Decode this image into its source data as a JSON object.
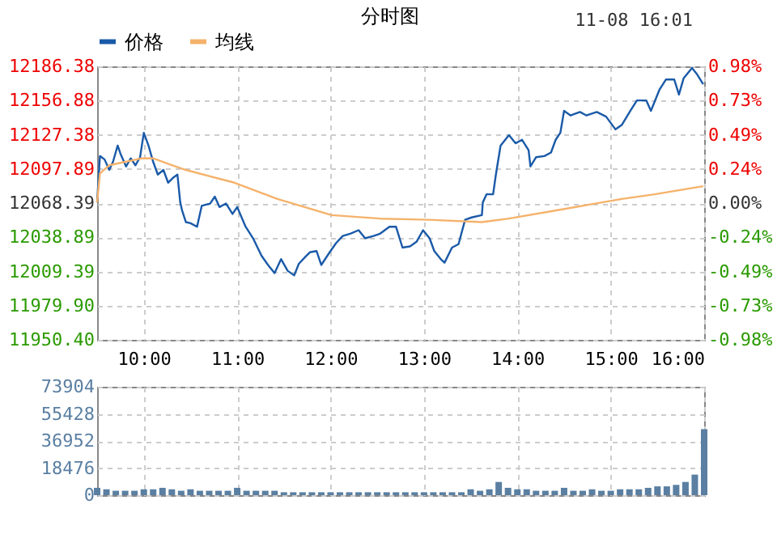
{
  "chart_data": [
    {
      "type": "line",
      "title": "分时图",
      "legend": "top",
      "grid": true,
      "annotations": [
        "11-08 16:01"
      ],
      "xlim": [
        9.5,
        16
      ],
      "xticks": [
        {
          "value": 10,
          "label": "10:00"
        },
        {
          "value": 11,
          "label": "11:00"
        },
        {
          "value": 12,
          "label": "12:00"
        },
        {
          "value": 13,
          "label": "13:00"
        },
        {
          "value": 14,
          "label": "14:00"
        },
        {
          "value": 15,
          "label": "15:00"
        },
        {
          "value": 16,
          "label": "16:00"
        }
      ],
      "ylim": [
        11950.4,
        12186.38
      ],
      "yticks": [
        12186.38,
        12156.88,
        12127.38,
        12097.89,
        12068.39,
        12038.89,
        12009.39,
        {
          "value": 11979.9,
          "label": "11979.90"
        },
        {
          "value": 11950.4,
          "label": "11950.40"
        }
      ],
      "y2lim": [
        -0.98,
        0.98
      ],
      "y2ticks": [
        {
          "value": 0.98,
          "label": "0.98%"
        },
        {
          "value": 0.735,
          "label": "0.73%"
        },
        {
          "value": 0.49,
          "label": "0.49%"
        },
        {
          "value": 0.245,
          "label": "0.24%"
        },
        {
          "value": 0,
          "label": "0.00%"
        },
        {
          "value": -0.245,
          "label": "-0.24%"
        },
        {
          "value": -0.49,
          "label": "-0.49%"
        },
        {
          "value": -0.735,
          "label": "-0.73%"
        },
        {
          "value": -0.98,
          "label": "-0.98%"
        }
      ],
      "series": [
        {
          "name": "价格",
          "color": "#1a5aa8",
          "x": [
            9.5,
            9.53,
            9.58,
            9.63,
            9.67,
            9.72,
            9.75,
            9.81,
            9.86,
            9.91,
            9.96,
            10.0,
            10.05,
            10.1,
            10.15,
            10.21,
            10.26,
            10.31,
            10.36,
            10.39,
            10.41,
            10.45,
            10.5,
            10.57,
            10.62,
            10.71,
            10.76,
            10.81,
            10.88,
            10.95,
            11.0,
            11.09,
            11.17,
            11.26,
            11.33,
            11.4,
            11.47,
            11.54,
            11.61,
            11.66,
            11.73,
            11.78,
            11.85,
            11.9,
            11.99,
            12.06,
            12.13,
            12.21,
            12.3,
            12.37,
            12.46,
            12.53,
            12.63,
            12.7,
            12.77,
            12.85,
            12.92,
            12.99,
            13.06,
            13.11,
            13.18,
            13.22,
            13.3,
            13.37,
            13.44,
            13.51,
            13.62,
            13.63,
            13.67,
            13.74,
            13.77,
            13.82,
            13.91,
            13.98,
            14.05,
            14.12,
            14.14,
            14.2,
            14.29,
            14.36,
            14.41,
            14.46,
            14.5,
            14.57,
            14.67,
            14.74,
            14.85,
            14.95,
            15.05,
            15.12,
            15.21,
            15.28,
            15.38,
            15.43,
            15.52,
            15.59,
            15.68,
            15.73,
            15.78,
            15.87,
            15.92,
            15.99
          ],
          "values": [
            12069,
            12109,
            12106,
            12097,
            12104,
            12118,
            12111,
            12100,
            12107,
            12101,
            12108,
            12129,
            12118,
            12104,
            12093,
            12097,
            12086,
            12090,
            12093,
            12069,
            12062,
            12052,
            12051,
            12048,
            12066,
            12068,
            12074,
            12065,
            12068,
            12059,
            12065,
            12048,
            12038,
            12023,
            12015,
            12008,
            12020,
            12010,
            12006,
            12016,
            12022,
            12026,
            12027,
            12015,
            12026,
            12034,
            12040,
            12042,
            12045,
            12038,
            12040,
            12042,
            12048,
            12048,
            12030,
            12031,
            12035,
            12045,
            12038,
            12027,
            12020,
            12017,
            12030,
            12033,
            12054,
            12056,
            12058,
            12069,
            12076,
            12076,
            12093,
            12118,
            12127,
            12120,
            12123,
            12114,
            12100,
            12108,
            12109,
            12112,
            12123,
            12129,
            12148,
            12144,
            12147,
            12144,
            12147,
            12143,
            12132,
            12136,
            12148,
            12157,
            12157,
            12148,
            12166,
            12175,
            12175,
            12162,
            12176,
            12185,
            12180,
            12171
          ]
        },
        {
          "name": "均线",
          "color": "#f5b26b",
          "x": [
            9.5,
            9.53,
            9.63,
            9.98,
            10.1,
            10.27,
            10.45,
            10.97,
            11.43,
            12.01,
            12.53,
            13.05,
            13.62,
            13.91,
            14.48,
            15.12,
            15.47,
            15.99
          ],
          "values": [
            12069,
            12094,
            12101,
            12107,
            12107,
            12102,
            12097,
            12086,
            12072,
            12058,
            12055,
            12054,
            12052,
            12055,
            12063,
            12072,
            12076,
            12083
          ]
        }
      ]
    },
    {
      "type": "bar",
      "grid": true,
      "tick_labels": "y",
      "color": "#5a7fa2",
      "xlim": [
        9.5,
        16
      ],
      "xticks": [
        10,
        11,
        12,
        13,
        14,
        15,
        16
      ],
      "ylim": [
        0,
        73904
      ],
      "yticks": [
        0,
        18476,
        36952,
        55428,
        73904
      ],
      "x": [
        9.5,
        9.6,
        9.7,
        9.8,
        9.9,
        10.0,
        10.1,
        10.2,
        10.3,
        10.4,
        10.5,
        10.6,
        10.7,
        10.8,
        10.9,
        11.0,
        11.1,
        11.2,
        11.3,
        11.4,
        11.5,
        11.6,
        11.7,
        11.8,
        11.9,
        12.0,
        12.1,
        12.2,
        12.3,
        12.4,
        12.5,
        12.6,
        12.7,
        12.8,
        12.9,
        13.0,
        13.1,
        13.2,
        13.3,
        13.4,
        13.5,
        13.6,
        13.7,
        13.8,
        13.9,
        14.0,
        14.1,
        14.2,
        14.3,
        14.4,
        14.5,
        14.6,
        14.7,
        14.8,
        14.9,
        15.0,
        15.1,
        15.2,
        15.3,
        15.4,
        15.5,
        15.6,
        15.7,
        15.8,
        15.9,
        16.0
      ],
      "values": [
        5000,
        4000,
        3000,
        3000,
        3000,
        4000,
        4000,
        5000,
        4000,
        3000,
        4000,
        3000,
        3000,
        3000,
        3000,
        5000,
        3000,
        3000,
        3000,
        3000,
        2000,
        2000,
        2000,
        2000,
        2000,
        2000,
        2000,
        2000,
        2000,
        2000,
        2000,
        2000,
        2000,
        2000,
        2000,
        2000,
        2000,
        2000,
        2000,
        2000,
        4000,
        3000,
        4000,
        9000,
        5000,
        4000,
        4000,
        3000,
        3000,
        3000,
        5000,
        3000,
        3000,
        4000,
        3000,
        3000,
        4000,
        4000,
        4000,
        5000,
        6000,
        6000,
        7000,
        9000,
        14000,
        45000
      ]
    }
  ]
}
